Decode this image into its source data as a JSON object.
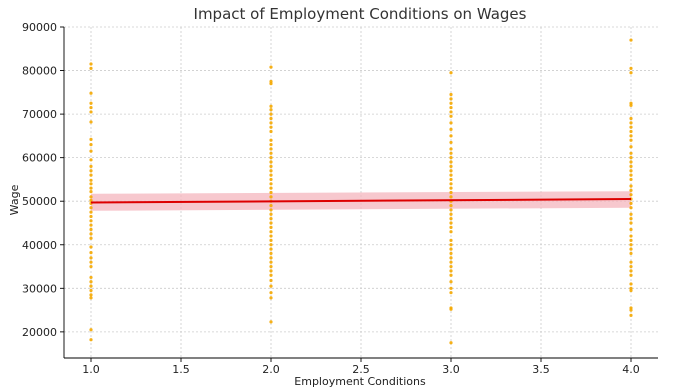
{
  "chart_data": {
    "type": "scatter",
    "title": "Impact of Employment Conditions on Wages",
    "xlabel": "Employment Conditions",
    "ylabel": "Wage",
    "xlim": [
      0.85,
      4.15
    ],
    "ylim": [
      14000,
      90000
    ],
    "xticks": [
      "1.0",
      "1.5",
      "2.0",
      "2.5",
      "3.0",
      "3.5",
      "4.0"
    ],
    "yticks": [
      "20000",
      "30000",
      "40000",
      "50000",
      "60000",
      "70000",
      "80000",
      "90000"
    ],
    "grid": true,
    "colors": {
      "points": "#f5a800",
      "regression_line": "#dd0000",
      "confidence_band": "#f4b6bd"
    },
    "regression": {
      "x": [
        1.0,
        4.0
      ],
      "y": [
        49700,
        50500
      ],
      "ci_lower": [
        47800,
        48500
      ],
      "ci_upper": [
        51700,
        52300
      ]
    },
    "points": [
      {
        "x": 1,
        "y": 81500
      },
      {
        "x": 1,
        "y": 80500
      },
      {
        "x": 1,
        "y": 74800
      },
      {
        "x": 1,
        "y": 72500
      },
      {
        "x": 1,
        "y": 71500
      },
      {
        "x": 1,
        "y": 70500
      },
      {
        "x": 1,
        "y": 68200
      },
      {
        "x": 1,
        "y": 64200
      },
      {
        "x": 1,
        "y": 63000
      },
      {
        "x": 1,
        "y": 61500
      },
      {
        "x": 1,
        "y": 59500
      },
      {
        "x": 1,
        "y": 58000
      },
      {
        "x": 1,
        "y": 57000
      },
      {
        "x": 1,
        "y": 56000
      },
      {
        "x": 1,
        "y": 54800
      },
      {
        "x": 1,
        "y": 54000
      },
      {
        "x": 1,
        "y": 53000
      },
      {
        "x": 1,
        "y": 52200
      },
      {
        "x": 1,
        "y": 51000
      },
      {
        "x": 1,
        "y": 50200
      },
      {
        "x": 1,
        "y": 49500
      },
      {
        "x": 1,
        "y": 48500
      },
      {
        "x": 1,
        "y": 47500
      },
      {
        "x": 1,
        "y": 46500
      },
      {
        "x": 1,
        "y": 45500
      },
      {
        "x": 1,
        "y": 44500
      },
      {
        "x": 1,
        "y": 43500
      },
      {
        "x": 1,
        "y": 42500
      },
      {
        "x": 1,
        "y": 41500
      },
      {
        "x": 1,
        "y": 39500
      },
      {
        "x": 1,
        "y": 38200
      },
      {
        "x": 1,
        "y": 37000
      },
      {
        "x": 1,
        "y": 36000
      },
      {
        "x": 1,
        "y": 35000
      },
      {
        "x": 1,
        "y": 32500
      },
      {
        "x": 1,
        "y": 31500
      },
      {
        "x": 1,
        "y": 30500
      },
      {
        "x": 1,
        "y": 29500
      },
      {
        "x": 1,
        "y": 28500
      },
      {
        "x": 1,
        "y": 27800
      },
      {
        "x": 1,
        "y": 20500
      },
      {
        "x": 1,
        "y": 18200
      },
      {
        "x": 2,
        "y": 80800
      },
      {
        "x": 2,
        "y": 77500
      },
      {
        "x": 2,
        "y": 77000
      },
      {
        "x": 2,
        "y": 71800
      },
      {
        "x": 2,
        "y": 71000
      },
      {
        "x": 2,
        "y": 70000
      },
      {
        "x": 2,
        "y": 69000
      },
      {
        "x": 2,
        "y": 68000
      },
      {
        "x": 2,
        "y": 67000
      },
      {
        "x": 2,
        "y": 66000
      },
      {
        "x": 2,
        "y": 64000
      },
      {
        "x": 2,
        "y": 63000
      },
      {
        "x": 2,
        "y": 62000
      },
      {
        "x": 2,
        "y": 61000
      },
      {
        "x": 2,
        "y": 60000
      },
      {
        "x": 2,
        "y": 59000
      },
      {
        "x": 2,
        "y": 58000
      },
      {
        "x": 2,
        "y": 57000
      },
      {
        "x": 2,
        "y": 56000
      },
      {
        "x": 2,
        "y": 55000
      },
      {
        "x": 2,
        "y": 54000
      },
      {
        "x": 2,
        "y": 53000
      },
      {
        "x": 2,
        "y": 52000
      },
      {
        "x": 2,
        "y": 51000
      },
      {
        "x": 2,
        "y": 50000
      },
      {
        "x": 2,
        "y": 49000
      },
      {
        "x": 2,
        "y": 48000
      },
      {
        "x": 2,
        "y": 47000
      },
      {
        "x": 2,
        "y": 46000
      },
      {
        "x": 2,
        "y": 45000
      },
      {
        "x": 2,
        "y": 44000
      },
      {
        "x": 2,
        "y": 43000
      },
      {
        "x": 2,
        "y": 42000
      },
      {
        "x": 2,
        "y": 41000
      },
      {
        "x": 2,
        "y": 40000
      },
      {
        "x": 2,
        "y": 39000
      },
      {
        "x": 2,
        "y": 38000
      },
      {
        "x": 2,
        "y": 37000
      },
      {
        "x": 2,
        "y": 36000
      },
      {
        "x": 2,
        "y": 35000
      },
      {
        "x": 2,
        "y": 34000
      },
      {
        "x": 2,
        "y": 33000
      },
      {
        "x": 2,
        "y": 31800
      },
      {
        "x": 2,
        "y": 30500
      },
      {
        "x": 2,
        "y": 29000
      },
      {
        "x": 2,
        "y": 27800
      },
      {
        "x": 2,
        "y": 22300
      },
      {
        "x": 3,
        "y": 79500
      },
      {
        "x": 3,
        "y": 74500
      },
      {
        "x": 3,
        "y": 73500
      },
      {
        "x": 3,
        "y": 72500
      },
      {
        "x": 3,
        "y": 71500
      },
      {
        "x": 3,
        "y": 70500
      },
      {
        "x": 3,
        "y": 69500
      },
      {
        "x": 3,
        "y": 68000
      },
      {
        "x": 3,
        "y": 66500
      },
      {
        "x": 3,
        "y": 65000
      },
      {
        "x": 3,
        "y": 63500
      },
      {
        "x": 3,
        "y": 62000
      },
      {
        "x": 3,
        "y": 61000
      },
      {
        "x": 3,
        "y": 60000
      },
      {
        "x": 3,
        "y": 59000
      },
      {
        "x": 3,
        "y": 58000
      },
      {
        "x": 3,
        "y": 57000
      },
      {
        "x": 3,
        "y": 56000
      },
      {
        "x": 3,
        "y": 55000
      },
      {
        "x": 3,
        "y": 54000
      },
      {
        "x": 3,
        "y": 53000
      },
      {
        "x": 3,
        "y": 52000
      },
      {
        "x": 3,
        "y": 51000
      },
      {
        "x": 3,
        "y": 50000
      },
      {
        "x": 3,
        "y": 49000
      },
      {
        "x": 3,
        "y": 48000
      },
      {
        "x": 3,
        "y": 47000
      },
      {
        "x": 3,
        "y": 46000
      },
      {
        "x": 3,
        "y": 45000
      },
      {
        "x": 3,
        "y": 44000
      },
      {
        "x": 3,
        "y": 43000
      },
      {
        "x": 3,
        "y": 41000
      },
      {
        "x": 3,
        "y": 40000
      },
      {
        "x": 3,
        "y": 39000
      },
      {
        "x": 3,
        "y": 38000
      },
      {
        "x": 3,
        "y": 37000
      },
      {
        "x": 3,
        "y": 36000
      },
      {
        "x": 3,
        "y": 35000
      },
      {
        "x": 3,
        "y": 34000
      },
      {
        "x": 3,
        "y": 33000
      },
      {
        "x": 3,
        "y": 31500
      },
      {
        "x": 3,
        "y": 30000
      },
      {
        "x": 3,
        "y": 29000
      },
      {
        "x": 3,
        "y": 25500
      },
      {
        "x": 3,
        "y": 25200
      },
      {
        "x": 3,
        "y": 17500
      },
      {
        "x": 4,
        "y": 87000
      },
      {
        "x": 4,
        "y": 80500
      },
      {
        "x": 4,
        "y": 79500
      },
      {
        "x": 4,
        "y": 72500
      },
      {
        "x": 4,
        "y": 72000
      },
      {
        "x": 4,
        "y": 69000
      },
      {
        "x": 4,
        "y": 68000
      },
      {
        "x": 4,
        "y": 67000
      },
      {
        "x": 4,
        "y": 66000
      },
      {
        "x": 4,
        "y": 65000
      },
      {
        "x": 4,
        "y": 64000
      },
      {
        "x": 4,
        "y": 62500
      },
      {
        "x": 4,
        "y": 61000
      },
      {
        "x": 4,
        "y": 60000
      },
      {
        "x": 4,
        "y": 59000
      },
      {
        "x": 4,
        "y": 58000
      },
      {
        "x": 4,
        "y": 57000
      },
      {
        "x": 4,
        "y": 56000
      },
      {
        "x": 4,
        "y": 55000
      },
      {
        "x": 4,
        "y": 53500
      },
      {
        "x": 4,
        "y": 52500
      },
      {
        "x": 4,
        "y": 51500
      },
      {
        "x": 4,
        "y": 50500
      },
      {
        "x": 4,
        "y": 49500
      },
      {
        "x": 4,
        "y": 48500
      },
      {
        "x": 4,
        "y": 47000
      },
      {
        "x": 4,
        "y": 46000
      },
      {
        "x": 4,
        "y": 45000
      },
      {
        "x": 4,
        "y": 43500
      },
      {
        "x": 4,
        "y": 42000
      },
      {
        "x": 4,
        "y": 41000
      },
      {
        "x": 4,
        "y": 40000
      },
      {
        "x": 4,
        "y": 39000
      },
      {
        "x": 4,
        "y": 38000
      },
      {
        "x": 4,
        "y": 36000
      },
      {
        "x": 4,
        "y": 35000
      },
      {
        "x": 4,
        "y": 34000
      },
      {
        "x": 4,
        "y": 33000
      },
      {
        "x": 4,
        "y": 31000
      },
      {
        "x": 4,
        "y": 30000
      },
      {
        "x": 4,
        "y": 29500
      },
      {
        "x": 4,
        "y": 25500
      },
      {
        "x": 4,
        "y": 25000
      },
      {
        "x": 4,
        "y": 23800
      }
    ]
  }
}
